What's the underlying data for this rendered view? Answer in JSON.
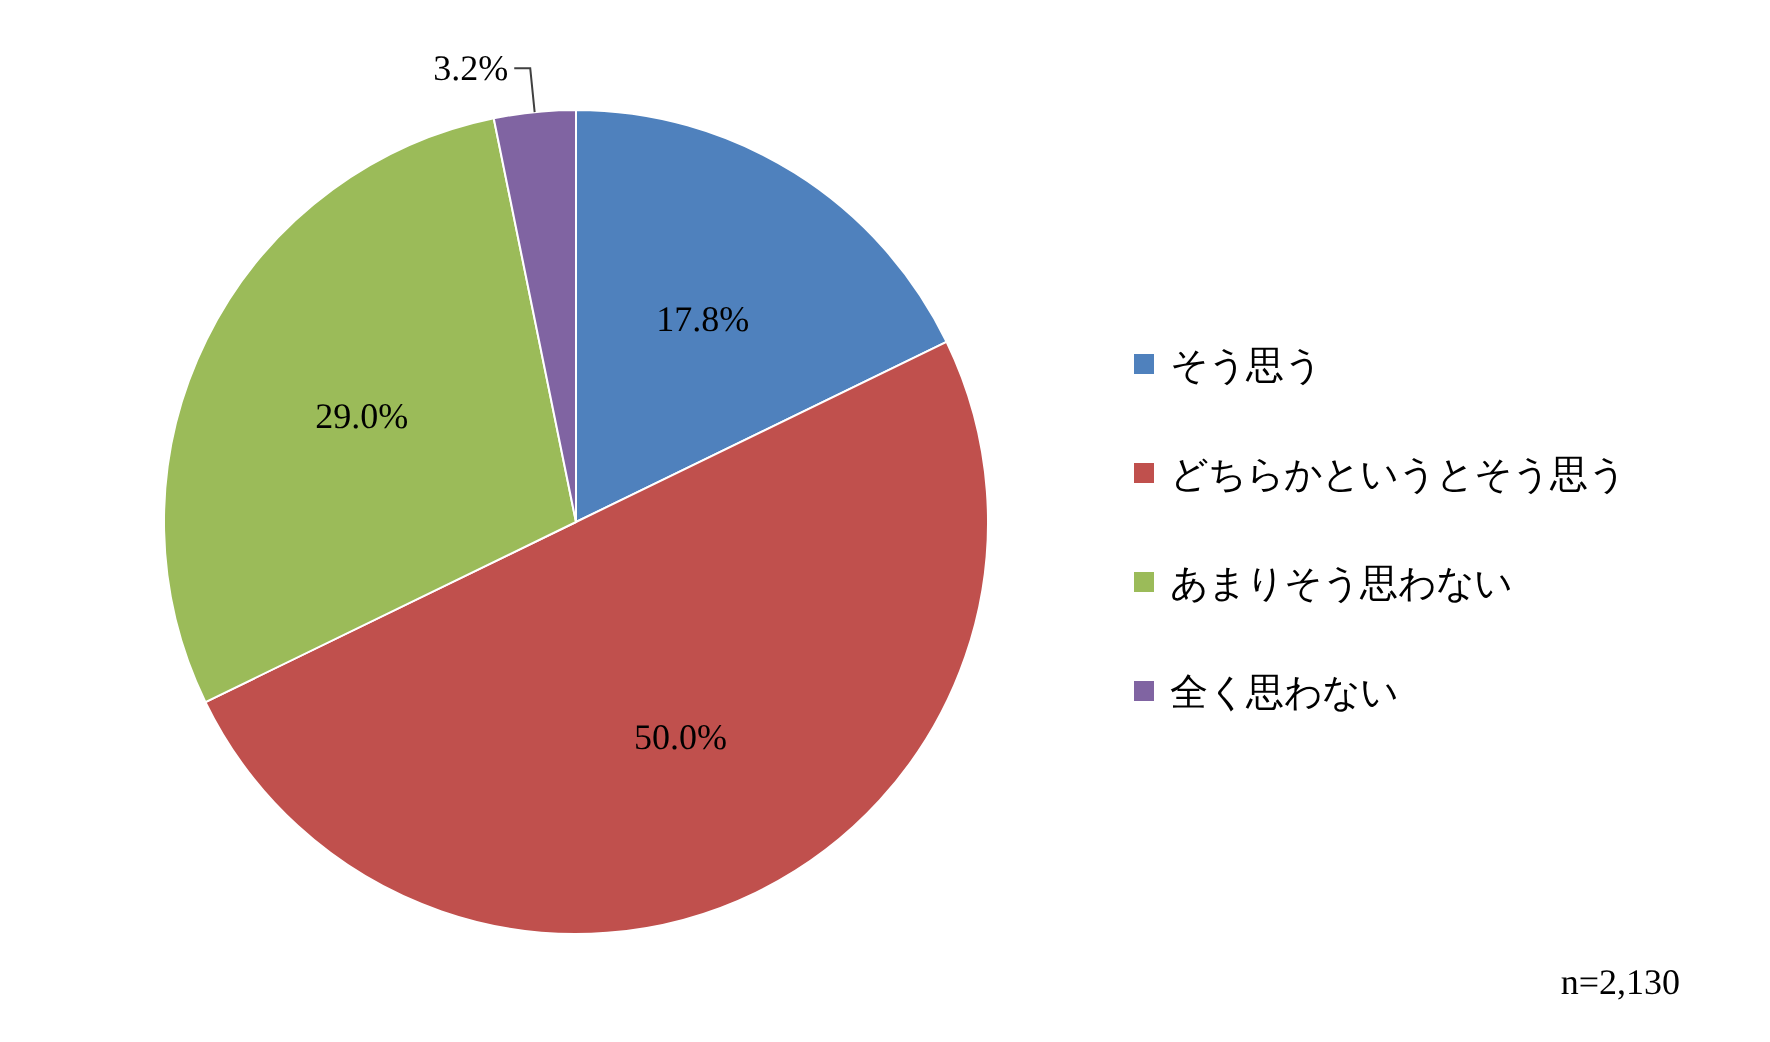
{
  "chart_data": {
    "type": "pie",
    "categories": [
      "そう思う",
      "どちらかというとそう思う",
      "あまりそう思わない",
      "全く思わない"
    ],
    "values": [
      17.8,
      50.0,
      29.0,
      3.2
    ],
    "colors": [
      "#4f81bd",
      "#c0504d",
      "#9bbb59",
      "#8064a2"
    ],
    "value_labels": [
      "17.8%",
      "50.0%",
      "29.0%",
      "3.2%"
    ],
    "legend": "right",
    "annotations": [
      "n=2,130"
    ]
  }
}
